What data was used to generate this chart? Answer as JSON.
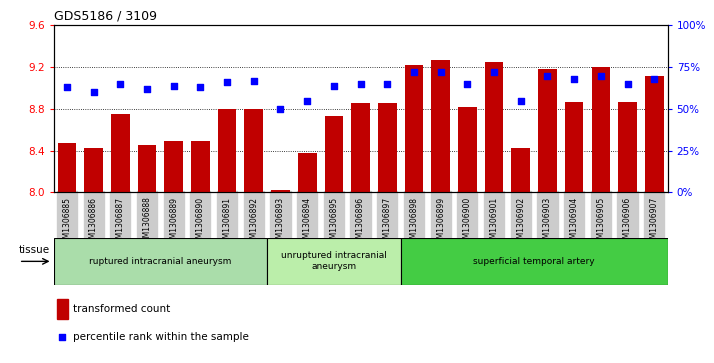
{
  "title": "GDS5186 / 3109",
  "samples": [
    "GSM1306885",
    "GSM1306886",
    "GSM1306887",
    "GSM1306888",
    "GSM1306889",
    "GSM1306890",
    "GSM1306891",
    "GSM1306892",
    "GSM1306893",
    "GSM1306894",
    "GSM1306895",
    "GSM1306896",
    "GSM1306897",
    "GSM1306898",
    "GSM1306899",
    "GSM1306900",
    "GSM1306901",
    "GSM1306902",
    "GSM1306903",
    "GSM1306904",
    "GSM1306905",
    "GSM1306906",
    "GSM1306907"
  ],
  "bar_values": [
    8.47,
    8.43,
    8.75,
    8.45,
    8.49,
    8.49,
    8.8,
    8.8,
    8.02,
    8.38,
    8.73,
    8.86,
    8.86,
    9.22,
    9.27,
    8.82,
    9.25,
    8.43,
    9.18,
    8.87,
    9.2,
    8.87,
    9.12
  ],
  "percentile_values": [
    63,
    60,
    65,
    62,
    64,
    63,
    66,
    67,
    50,
    55,
    64,
    65,
    65,
    72,
    72,
    65,
    72,
    55,
    70,
    68,
    70,
    65,
    68
  ],
  "bar_color": "#C00000",
  "dot_color": "#0000FF",
  "ymin": 8.0,
  "ymax": 9.6,
  "y2min": 0,
  "y2max": 100,
  "yticks": [
    8.0,
    8.4,
    8.8,
    9.2,
    9.6
  ],
  "y2ticks": [
    0,
    25,
    50,
    75,
    100
  ],
  "groups": [
    {
      "label": "ruptured intracranial aneurysm",
      "start": 0,
      "end": 8,
      "color": "#AADDAA"
    },
    {
      "label": "unruptured intracranial\naneurysm",
      "start": 8,
      "end": 13,
      "color": "#BBEEAA"
    },
    {
      "label": "superficial temporal artery",
      "start": 13,
      "end": 23,
      "color": "#44CC44"
    }
  ],
  "tissue_label": "tissue",
  "legend_bar_label": "transformed count",
  "legend_dot_label": "percentile rank within the sample",
  "plot_bg": "#FFFFFF",
  "xtick_bg": "#CCCCCC"
}
